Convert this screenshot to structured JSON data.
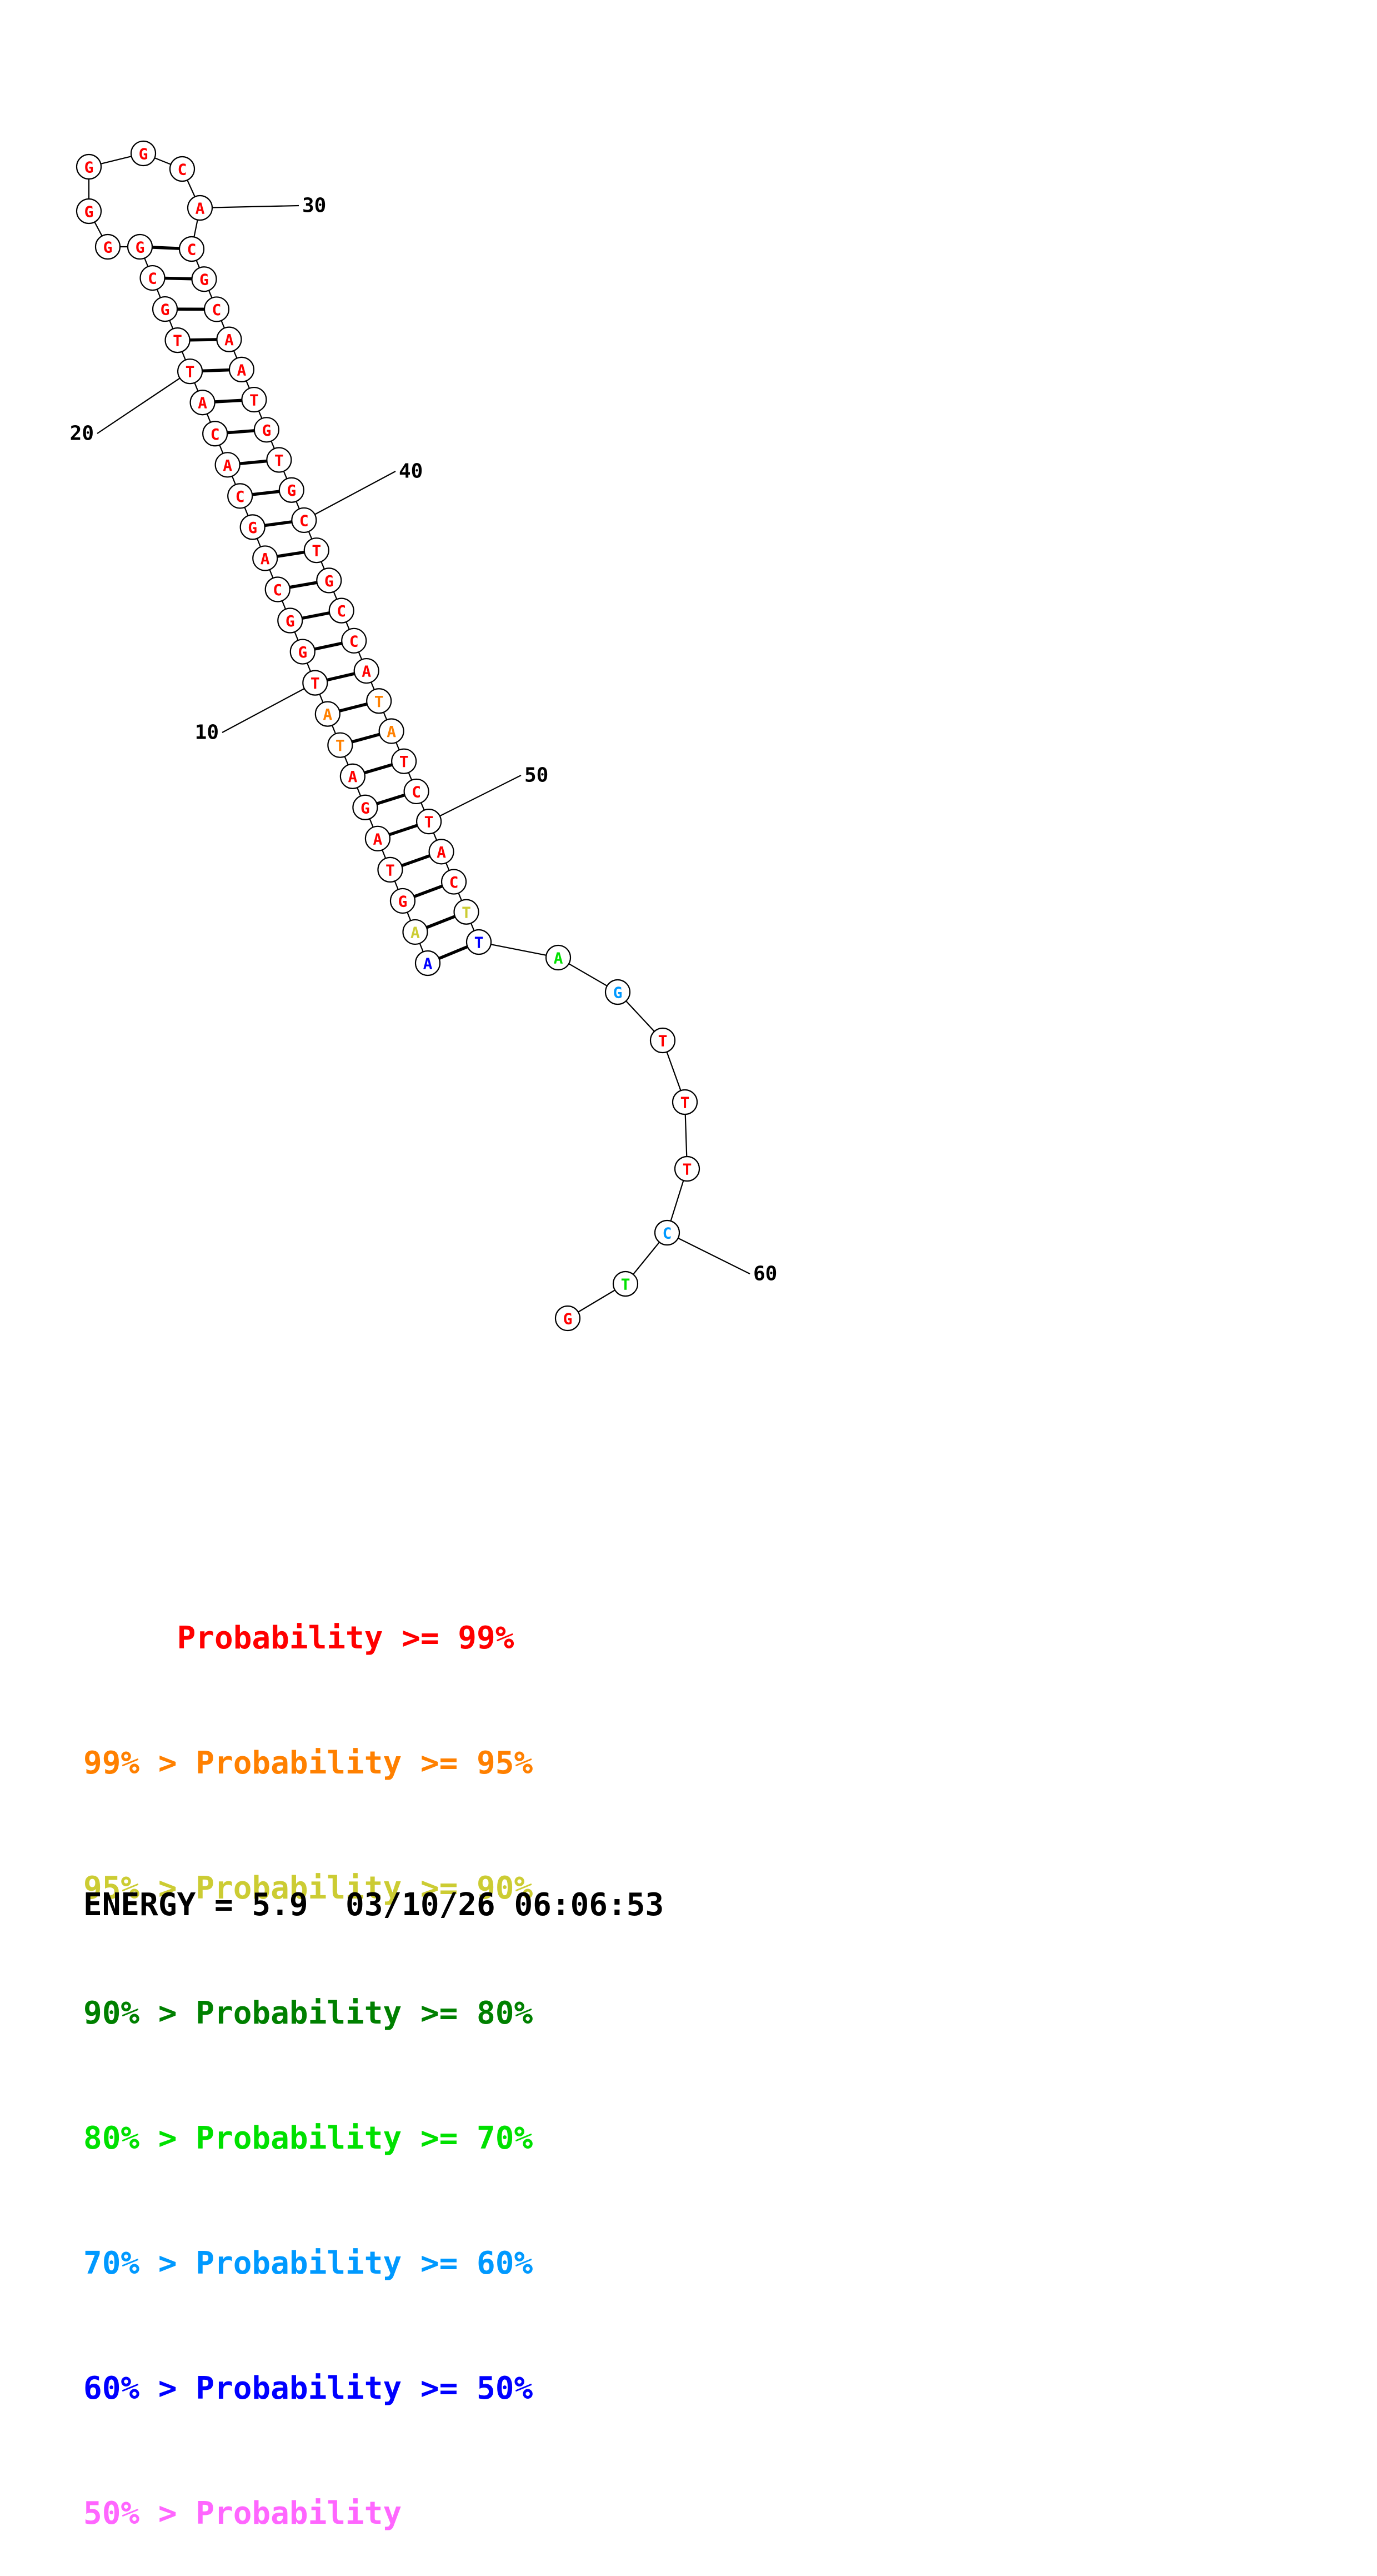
{
  "sequence": [
    "A",
    "A",
    "G",
    "T",
    "A",
    "G",
    "A",
    "T",
    "A",
    "T",
    "G",
    "G",
    "C",
    "A",
    "G",
    "C",
    "A",
    "C",
    "A",
    "T",
    "T",
    "G",
    "C",
    "G",
    "G",
    "G",
    "G",
    "G",
    "C",
    "A",
    "C",
    "G",
    "C",
    "A",
    "A",
    "T",
    "G",
    "T",
    "G",
    "C",
    "T",
    "G",
    "C",
    "C",
    "A",
    "T",
    "A",
    "T",
    "C",
    "T",
    "A",
    "C",
    "T",
    "T",
    "A",
    "G",
    "T",
    "T",
    "T",
    "C",
    "T",
    "G"
  ],
  "colors": {
    "red": "#ff0000",
    "orange": "#ff8000",
    "olive": "#cccc33",
    "blue": "#0000ff",
    "green": "#00e000",
    "cyan": "#0099ff",
    "dark_green": "#008000",
    "pink": "#ff66ff"
  },
  "nucleotide_colors": [
    "blue",
    "olive",
    "red",
    "red",
    "red",
    "red",
    "red",
    "orange",
    "orange",
    "red",
    "red",
    "red",
    "red",
    "red",
    "red",
    "red",
    "red",
    "red",
    "red",
    "red",
    "red",
    "red",
    "red",
    "red",
    "red",
    "red",
    "red",
    "red",
    "red",
    "red",
    "red",
    "red",
    "red",
    "red",
    "red",
    "red",
    "red",
    "red",
    "red",
    "red",
    "red",
    "red",
    "red",
    "red",
    "red",
    "orange",
    "orange",
    "red",
    "red",
    "red",
    "red",
    "red",
    "olive",
    "blue",
    "green",
    "cyan",
    "red",
    "red",
    "red",
    "cyan",
    "green",
    "red"
  ],
  "pairs": [
    [
      1,
      54
    ],
    [
      2,
      53
    ],
    [
      3,
      52
    ],
    [
      4,
      51
    ],
    [
      5,
      50
    ],
    [
      6,
      49
    ],
    [
      7,
      48
    ],
    [
      8,
      47
    ],
    [
      9,
      46
    ],
    [
      10,
      45
    ],
    [
      11,
      44
    ],
    [
      12,
      43
    ],
    [
      13,
      42
    ],
    [
      14,
      41
    ],
    [
      15,
      40
    ],
    [
      16,
      39
    ],
    [
      17,
      38
    ],
    [
      18,
      37
    ],
    [
      19,
      36
    ],
    [
      20,
      35
    ],
    [
      21,
      34
    ],
    [
      22,
      33
    ],
    [
      23,
      32
    ],
    [
      24,
      31
    ]
  ],
  "position_labels": [
    "10",
    "20",
    "30",
    "40",
    "50",
    "60"
  ],
  "legend": [
    {
      "text": "     Probability >= 99%",
      "color": "red"
    },
    {
      "text": "99% > Probability >= 95%",
      "color": "orange"
    },
    {
      "text": "95% > Probability >= 90%",
      "color": "olive"
    },
    {
      "text": "90% > Probability >= 80%",
      "color": "dark_green"
    },
    {
      "text": "80% > Probability >= 70%",
      "color": "green"
    },
    {
      "text": "70% > Probability >= 60%",
      "color": "cyan"
    },
    {
      "text": "60% > Probability >= 50%",
      "color": "blue"
    },
    {
      "text": "50% > Probability",
      "color": "pink"
    }
  ],
  "energy_line": "ENERGY = 5.9  03/10/26 06:06:53"
}
